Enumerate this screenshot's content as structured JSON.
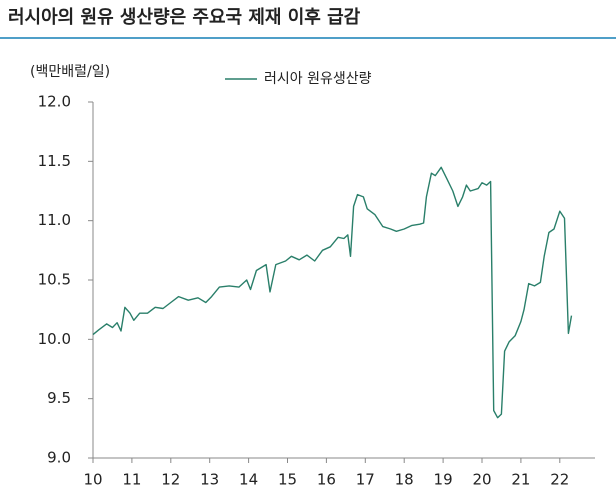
{
  "chart_data": {
    "type": "line",
    "title": "러시아의 원유 생산량은 주요국 제재 이후 급감",
    "y_label": "(백만배럴/일)",
    "x": [
      10.0,
      10.15,
      10.35,
      10.5,
      10.62,
      10.72,
      10.82,
      10.95,
      11.05,
      11.2,
      11.4,
      11.6,
      11.8,
      12.0,
      12.2,
      12.45,
      12.7,
      12.9,
      13.05,
      13.25,
      13.5,
      13.75,
      13.95,
      14.05,
      14.2,
      14.45,
      14.55,
      14.7,
      14.95,
      15.1,
      15.3,
      15.5,
      15.7,
      15.9,
      16.1,
      16.3,
      16.45,
      16.55,
      16.62,
      16.7,
      16.8,
      16.95,
      17.05,
      17.25,
      17.45,
      17.65,
      17.8,
      18.0,
      18.2,
      18.4,
      18.5,
      18.57,
      18.7,
      18.8,
      18.95,
      19.1,
      19.25,
      19.38,
      19.5,
      19.6,
      19.7,
      19.9,
      20.0,
      20.12,
      20.22,
      20.3,
      20.4,
      20.5,
      20.58,
      20.7,
      20.85,
      21.0,
      21.08,
      21.2,
      21.35,
      21.5,
      21.6,
      21.72,
      21.85,
      22.0,
      22.12,
      22.22,
      22.3
    ],
    "series": [
      {
        "name": "러시아 원유생산량",
        "color": "#2a7f6a",
        "values": [
          10.04,
          10.08,
          10.13,
          10.1,
          10.14,
          10.07,
          10.27,
          10.22,
          10.16,
          10.22,
          10.22,
          10.27,
          10.26,
          10.31,
          10.36,
          10.33,
          10.35,
          10.31,
          10.36,
          10.44,
          10.45,
          10.44,
          10.5,
          10.42,
          10.58,
          10.63,
          10.4,
          10.63,
          10.66,
          10.7,
          10.67,
          10.71,
          10.66,
          10.75,
          10.78,
          10.86,
          10.85,
          10.88,
          10.7,
          11.12,
          11.22,
          11.2,
          11.1,
          11.05,
          10.95,
          10.93,
          10.91,
          10.93,
          10.96,
          10.97,
          10.98,
          11.2,
          11.4,
          11.38,
          11.45,
          11.35,
          11.25,
          11.12,
          11.2,
          11.3,
          11.25,
          11.27,
          11.32,
          11.3,
          11.33,
          9.4,
          9.34,
          9.37,
          9.9,
          9.98,
          10.03,
          10.15,
          10.25,
          10.47,
          10.45,
          10.48,
          10.7,
          10.9,
          10.93,
          11.08,
          11.02,
          10.05,
          10.2
        ]
      }
    ],
    "xlim": [
      10,
      22.9
    ],
    "xticks": [
      10,
      11,
      12,
      13,
      14,
      15,
      16,
      17,
      18,
      19,
      20,
      21,
      22
    ],
    "ylim": [
      9,
      12
    ],
    "yticks": [
      {
        "value": 9,
        "label": "9.0"
      },
      {
        "value": 9.5,
        "label": "9.5"
      },
      {
        "value": 10,
        "label": "10.0"
      },
      {
        "value": 10.5,
        "label": "10.5"
      },
      {
        "value": 11,
        "label": "11.0"
      },
      {
        "value": 11.5,
        "label": "11.5"
      },
      {
        "value": 12,
        "label": "12.0"
      }
    ],
    "grid": false
  }
}
